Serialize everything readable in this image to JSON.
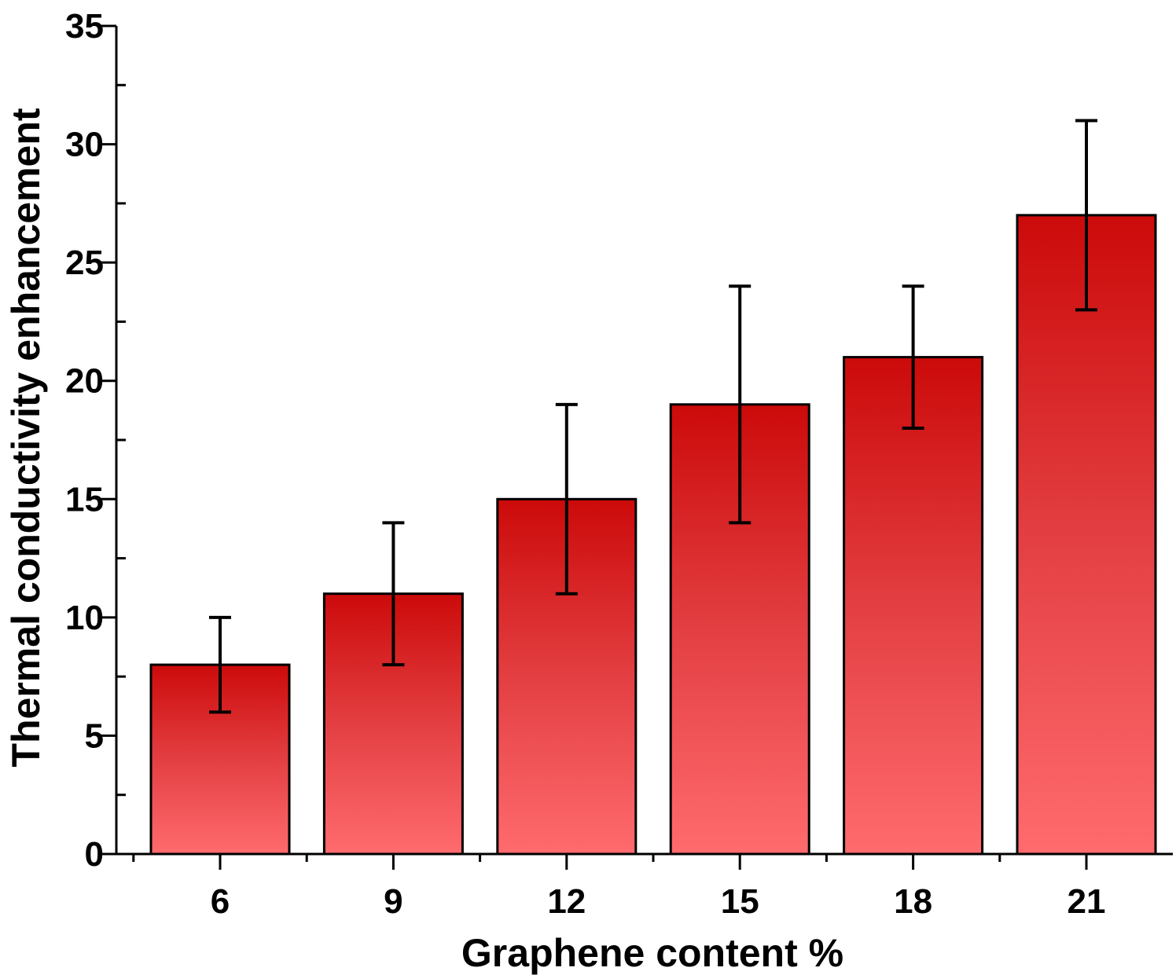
{
  "chart_data": {
    "type": "bar",
    "categories": [
      "6",
      "9",
      "12",
      "15",
      "18",
      "21"
    ],
    "values": [
      8,
      11,
      15,
      19,
      21,
      27
    ],
    "error_low": [
      6,
      8,
      11,
      14,
      18,
      23
    ],
    "error_high": [
      10,
      14,
      19,
      24,
      24,
      31
    ],
    "xlabel": "Graphene content %",
    "ylabel": "Thermal conductivity enhancement",
    "ylim": [
      0,
      35
    ],
    "yticks": [
      0,
      5,
      10,
      15,
      20,
      25,
      30,
      35
    ],
    "grid": false,
    "legend": false,
    "colors": {
      "bar_top": "#cc0a0a",
      "bar_mid": "#e33f42",
      "bar_bottom": "#ff6b6e",
      "outline": "#000000"
    }
  }
}
